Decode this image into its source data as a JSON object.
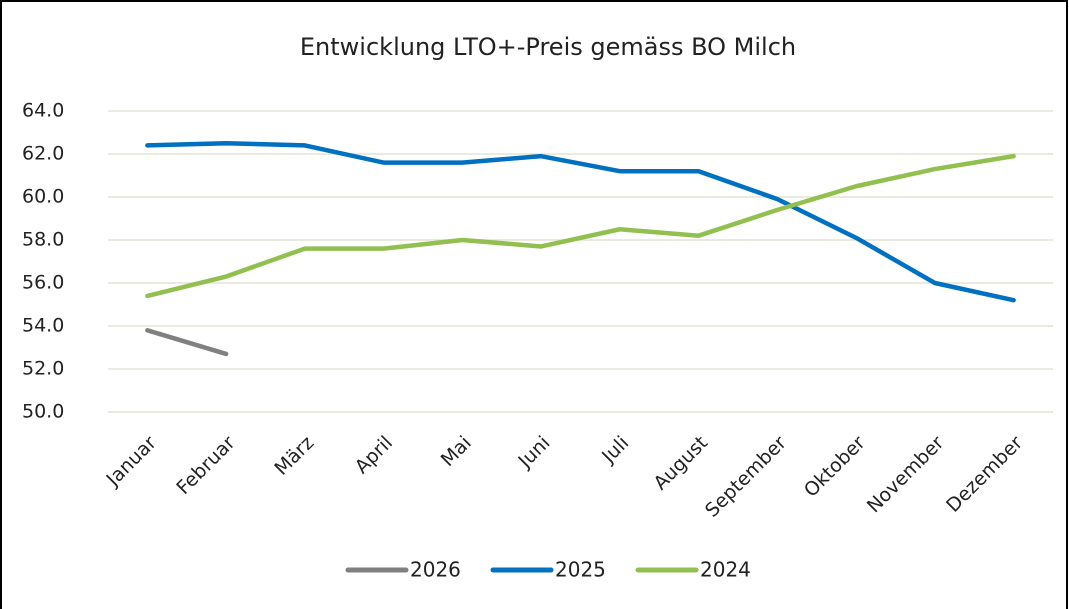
{
  "chart_data": {
    "type": "line",
    "title": "Entwicklung LTO+-Preis gemäss BO Milch",
    "categories": [
      "Januar",
      "Februar",
      "März",
      "April",
      "Mai",
      "Juni",
      "Juli",
      "August",
      "September",
      "Oktober",
      "November",
      "Dezember"
    ],
    "series": [
      {
        "name": "2026",
        "color": "#808080",
        "values": [
          53.8,
          52.7,
          null,
          null,
          null,
          null,
          null,
          null,
          null,
          null,
          null,
          null
        ]
      },
      {
        "name": "2025",
        "color": "#0070c0",
        "values": [
          62.4,
          62.5,
          62.4,
          61.6,
          61.6,
          61.9,
          61.2,
          61.2,
          59.9,
          58.1,
          56.0,
          55.2
        ]
      },
      {
        "name": "2024",
        "color": "#92c050",
        "values": [
          55.4,
          56.3,
          57.6,
          57.6,
          58.0,
          57.7,
          58.5,
          58.2,
          59.4,
          60.5,
          61.3,
          61.9
        ]
      }
    ],
    "ylim": [
      50,
      64
    ],
    "yticks": [
      {
        "value": 50,
        "label": "50.0"
      },
      {
        "value": 52,
        "label": "52.0"
      },
      {
        "value": 54,
        "label": "54.0"
      },
      {
        "value": 56,
        "label": "56.0"
      },
      {
        "value": 58,
        "label": "58.0"
      },
      {
        "value": 60,
        "label": "60.0"
      },
      {
        "value": 62,
        "label": "62.0"
      },
      {
        "value": 64,
        "label": "64.0"
      }
    ],
    "grid": true,
    "legend": "bottom"
  }
}
